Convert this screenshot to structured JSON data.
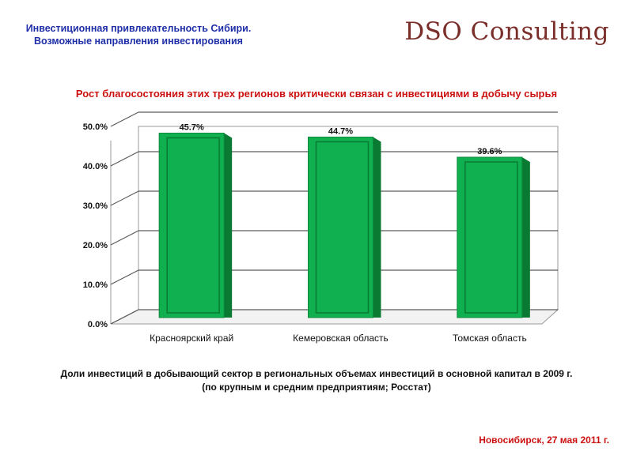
{
  "header": {
    "title_line1": "Инвестиционная привлекательность Сибири.",
    "title_line2": "Возможные направления инвестирования",
    "logo": "DSO Consulting"
  },
  "chart_heading": "Рост благосостояния этих трех регионов критически связан с инвестициями в добычу сырья",
  "caption": {
    "line1": "Доли инвестиций в добывающий сектор в региональных объемах инвестиций в основной капитал в 2009 г.",
    "line2": "(по крупным и средним предприятиям; Росстат)"
  },
  "footer": {
    "date": "Новосибирск, 27 мая 2011 г."
  },
  "colors": {
    "bar": "#10b050",
    "bar_side": "#0a7a33",
    "heading": "#cc1111",
    "title": "#1f2fa8"
  },
  "chart_data": {
    "type": "bar",
    "categories": [
      "Красноярский край",
      "Кемеровская область",
      "Томская область"
    ],
    "values": [
      45.7,
      44.7,
      39.6
    ],
    "value_labels": [
      "45.7%",
      "44.7%",
      "39.6%"
    ],
    "yticks": [
      "0.0%",
      "10.0%",
      "20.0%",
      "30.0%",
      "40.0%",
      "50.0%"
    ],
    "ylim": [
      0,
      50
    ],
    "grid": true,
    "legend": "none"
  }
}
